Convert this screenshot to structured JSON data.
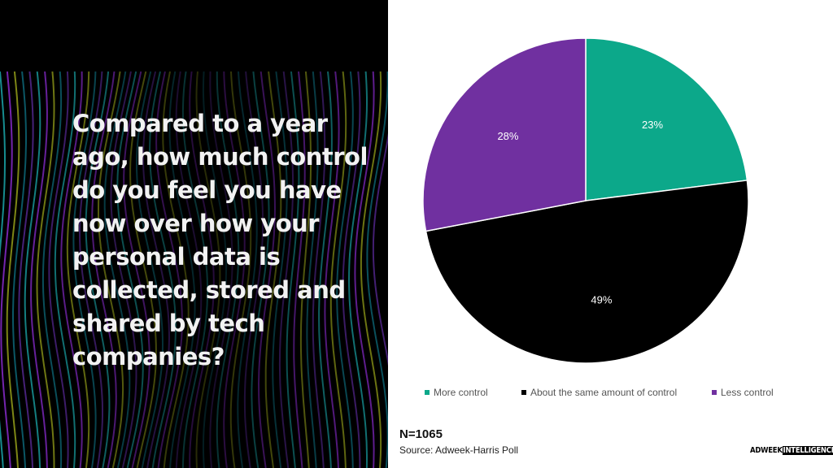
{
  "question": "Compared to a year ago, how much control do you feel you have now over how your personal data is collected, stored and shared by tech companies?",
  "chart_data": {
    "type": "pie",
    "categories": [
      "More control",
      "About the same amount of control",
      "Less control"
    ],
    "values": [
      23,
      49,
      28
    ],
    "data_labels": [
      "23%",
      "49%",
      "28%"
    ],
    "colors": [
      "#0ca88a",
      "#000000",
      "#7030a0"
    ],
    "start": "12 o'clock, clockwise",
    "legend": "bottom"
  },
  "footer": {
    "n": "N=1065",
    "source": "Source: Adweek-Harris Poll"
  },
  "logo": {
    "part1": "ADWEEK",
    "part2": "INTELLIGENCE"
  }
}
